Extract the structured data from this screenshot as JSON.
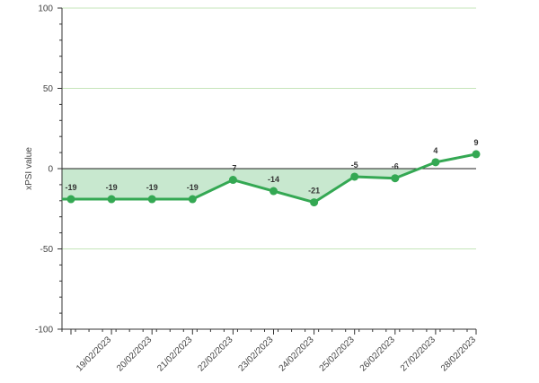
{
  "chart_data": {
    "type": "line",
    "ylabel": "xPSI value",
    "ylim": [
      -100,
      100
    ],
    "y_ticks": [
      100,
      50,
      0,
      -50,
      -100
    ],
    "grid": "horizontal",
    "x": [
      "",
      "19/02/2023",
      "20/02/2023",
      "21/02/2023",
      "22/02/2023",
      "23/02/2023",
      "24/02/2023",
      "25/02/2023",
      "26/02/2023",
      "27/02/2023",
      "28/02/2023"
    ],
    "series": [
      {
        "values": [
          -19,
          -19,
          -19,
          -19,
          -7,
          -14,
          -21,
          -5,
          -6,
          4,
          9
        ],
        "labels": [
          "-19",
          "-19",
          "-19",
          "-19",
          "-7",
          "-14",
          "-21",
          "-5",
          "-6",
          "4",
          "9"
        ]
      }
    ],
    "colors": {
      "line": "#34a853",
      "area": "#c8e8cf",
      "grid": "#c5e5b9",
      "zero_line": "#222222",
      "axis": "#333333"
    }
  }
}
